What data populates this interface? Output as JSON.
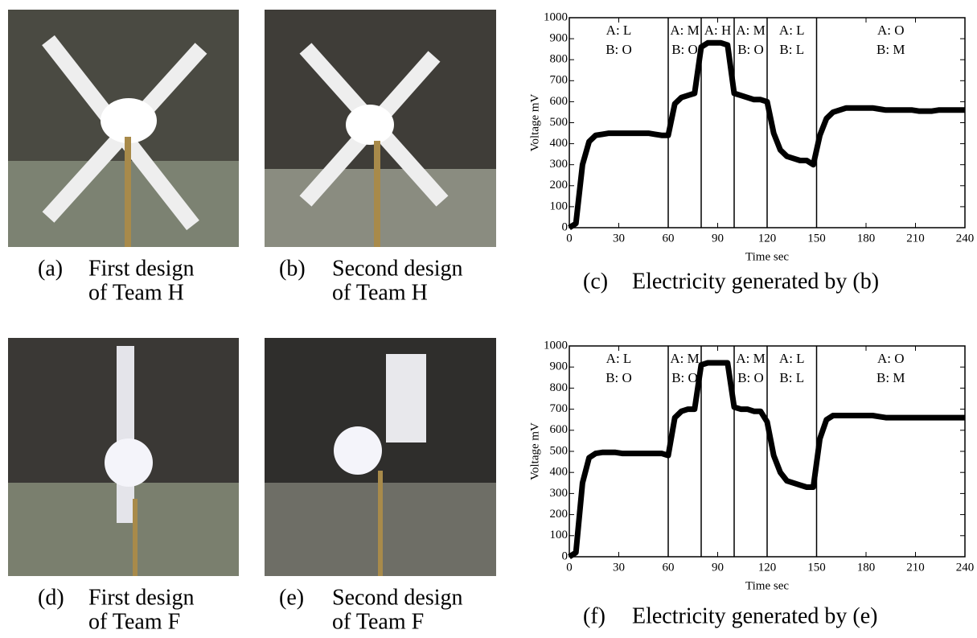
{
  "photos": [
    {
      "label": "(a)",
      "caption": [
        "First design",
        "of Team H"
      ]
    },
    {
      "label": "(b)",
      "caption": [
        "Second design",
        "of Team H"
      ]
    },
    {
      "label": "(d)",
      "caption": [
        "First design",
        "of Team F"
      ]
    },
    {
      "label": "(e)",
      "caption": [
        "Second design",
        "of Team F"
      ]
    }
  ],
  "chart_data": [
    {
      "type": "line",
      "label": "(c)",
      "caption": "Electricity generated by (b)",
      "xlabel": "Time sec",
      "ylabel": "Voltage mV",
      "color": "#000000",
      "xlim": [
        0,
        240
      ],
      "ylim": [
        0,
        1000
      ],
      "xticks": [
        0,
        30,
        60,
        90,
        120,
        150,
        180,
        210,
        240
      ],
      "yticks": [
        0,
        100,
        200,
        300,
        400,
        500,
        600,
        700,
        800,
        900,
        1000
      ],
      "dividers": [
        60,
        80,
        100,
        120,
        150
      ],
      "regions": [
        [
          "A: L",
          "B: O"
        ],
        [
          "A: M",
          "B: O"
        ],
        [
          "A: H"
        ],
        [
          "A: M",
          "B: O"
        ],
        [
          "A: L",
          "B: L"
        ],
        [
          "A: O",
          "B: M"
        ]
      ],
      "x": [
        0,
        4,
        8,
        12,
        16,
        20,
        24,
        28,
        32,
        36,
        40,
        44,
        48,
        52,
        56,
        60,
        64,
        68,
        72,
        76,
        80,
        84,
        88,
        92,
        96,
        100,
        104,
        108,
        112,
        116,
        120,
        124,
        128,
        132,
        136,
        140,
        144,
        148,
        152,
        156,
        160,
        164,
        168,
        172,
        176,
        180,
        184,
        188,
        192,
        196,
        200,
        204,
        208,
        212,
        216,
        220,
        224,
        228,
        232,
        236,
        240
      ],
      "values": [
        0,
        20,
        300,
        410,
        440,
        445,
        450,
        450,
        450,
        450,
        450,
        450,
        450,
        445,
        440,
        440,
        590,
        620,
        630,
        640,
        860,
        880,
        880,
        880,
        870,
        640,
        630,
        620,
        610,
        610,
        600,
        450,
        370,
        340,
        330,
        320,
        320,
        300,
        440,
        520,
        550,
        560,
        570,
        570,
        570,
        570,
        570,
        565,
        560,
        560,
        560,
        560,
        560,
        555,
        555,
        555,
        560,
        560,
        560,
        560,
        560
      ]
    },
    {
      "type": "line",
      "label": "(f)",
      "caption": "Electricity generated by (e)",
      "xlabel": "Time sec",
      "ylabel": "Voltage mV",
      "color": "#000000",
      "xlim": [
        0,
        240
      ],
      "ylim": [
        0,
        1000
      ],
      "xticks": [
        0,
        30,
        60,
        90,
        120,
        150,
        180,
        210,
        240
      ],
      "yticks": [
        0,
        100,
        200,
        300,
        400,
        500,
        600,
        700,
        800,
        900,
        1000
      ],
      "dividers": [
        60,
        80,
        100,
        120,
        150
      ],
      "regions": [
        [
          "A: L",
          "B: O"
        ],
        [
          "A: M",
          "B: O"
        ],
        [],
        [
          "A: M",
          "B: O"
        ],
        [
          "A: L",
          "B: L"
        ],
        [
          "A: O",
          "B: M"
        ]
      ],
      "x": [
        0,
        4,
        8,
        12,
        16,
        20,
        24,
        28,
        32,
        36,
        40,
        44,
        48,
        52,
        56,
        60,
        64,
        68,
        72,
        76,
        80,
        84,
        88,
        92,
        96,
        100,
        104,
        108,
        112,
        116,
        120,
        124,
        128,
        132,
        136,
        140,
        144,
        148,
        152,
        156,
        160,
        164,
        168,
        172,
        176,
        180,
        184,
        188,
        192,
        196,
        200,
        204,
        208,
        212,
        216,
        220,
        224,
        228,
        232,
        236,
        240
      ],
      "values": [
        0,
        20,
        350,
        470,
        490,
        495,
        495,
        495,
        490,
        490,
        490,
        490,
        490,
        490,
        490,
        480,
        660,
        690,
        700,
        700,
        910,
        920,
        920,
        920,
        920,
        710,
        700,
        700,
        690,
        690,
        640,
        480,
        400,
        360,
        350,
        340,
        330,
        330,
        560,
        650,
        670,
        670,
        670,
        670,
        670,
        670,
        670,
        665,
        660,
        660,
        660,
        660,
        660,
        660,
        660,
        660,
        660,
        660,
        660,
        660,
        660
      ]
    }
  ]
}
